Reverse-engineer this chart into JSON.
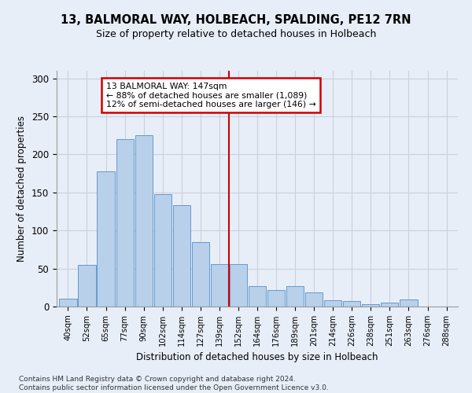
{
  "title1": "13, BALMORAL WAY, HOLBEACH, SPALDING, PE12 7RN",
  "title2": "Size of property relative to detached houses in Holbeach",
  "xlabel": "Distribution of detached houses by size in Holbeach",
  "ylabel": "Number of detached properties",
  "bar_labels": [
    "40sqm",
    "52sqm",
    "65sqm",
    "77sqm",
    "90sqm",
    "102sqm",
    "114sqm",
    "127sqm",
    "139sqm",
    "152sqm",
    "164sqm",
    "176sqm",
    "189sqm",
    "201sqm",
    "214sqm",
    "226sqm",
    "238sqm",
    "251sqm",
    "263sqm",
    "276sqm",
    "288sqm"
  ],
  "bar_heights": [
    10,
    55,
    178,
    220,
    225,
    148,
    133,
    85,
    56,
    56,
    27,
    22,
    27,
    19,
    8,
    7,
    3,
    5,
    9,
    0,
    0
  ],
  "bar_color": "#b8d0ea",
  "bar_edge_color": "#6699cc",
  "vline_x_idx": 9,
  "vline_color": "#cc0000",
  "annotation_text": "13 BALMORAL WAY: 147sqm\n← 88% of detached houses are smaller (1,089)\n12% of semi-detached houses are larger (146) →",
  "annotation_box_color": "#cc0000",
  "ylim": [
    0,
    310
  ],
  "yticks": [
    0,
    50,
    100,
    150,
    200,
    250,
    300
  ],
  "footnote": "Contains HM Land Registry data © Crown copyright and database right 2024.\nContains public sector information licensed under the Open Government Licence v3.0.",
  "bg_color": "#e8eef8",
  "plot_bg_color": "#e8eef8",
  "grid_color": "#c8d0e0"
}
